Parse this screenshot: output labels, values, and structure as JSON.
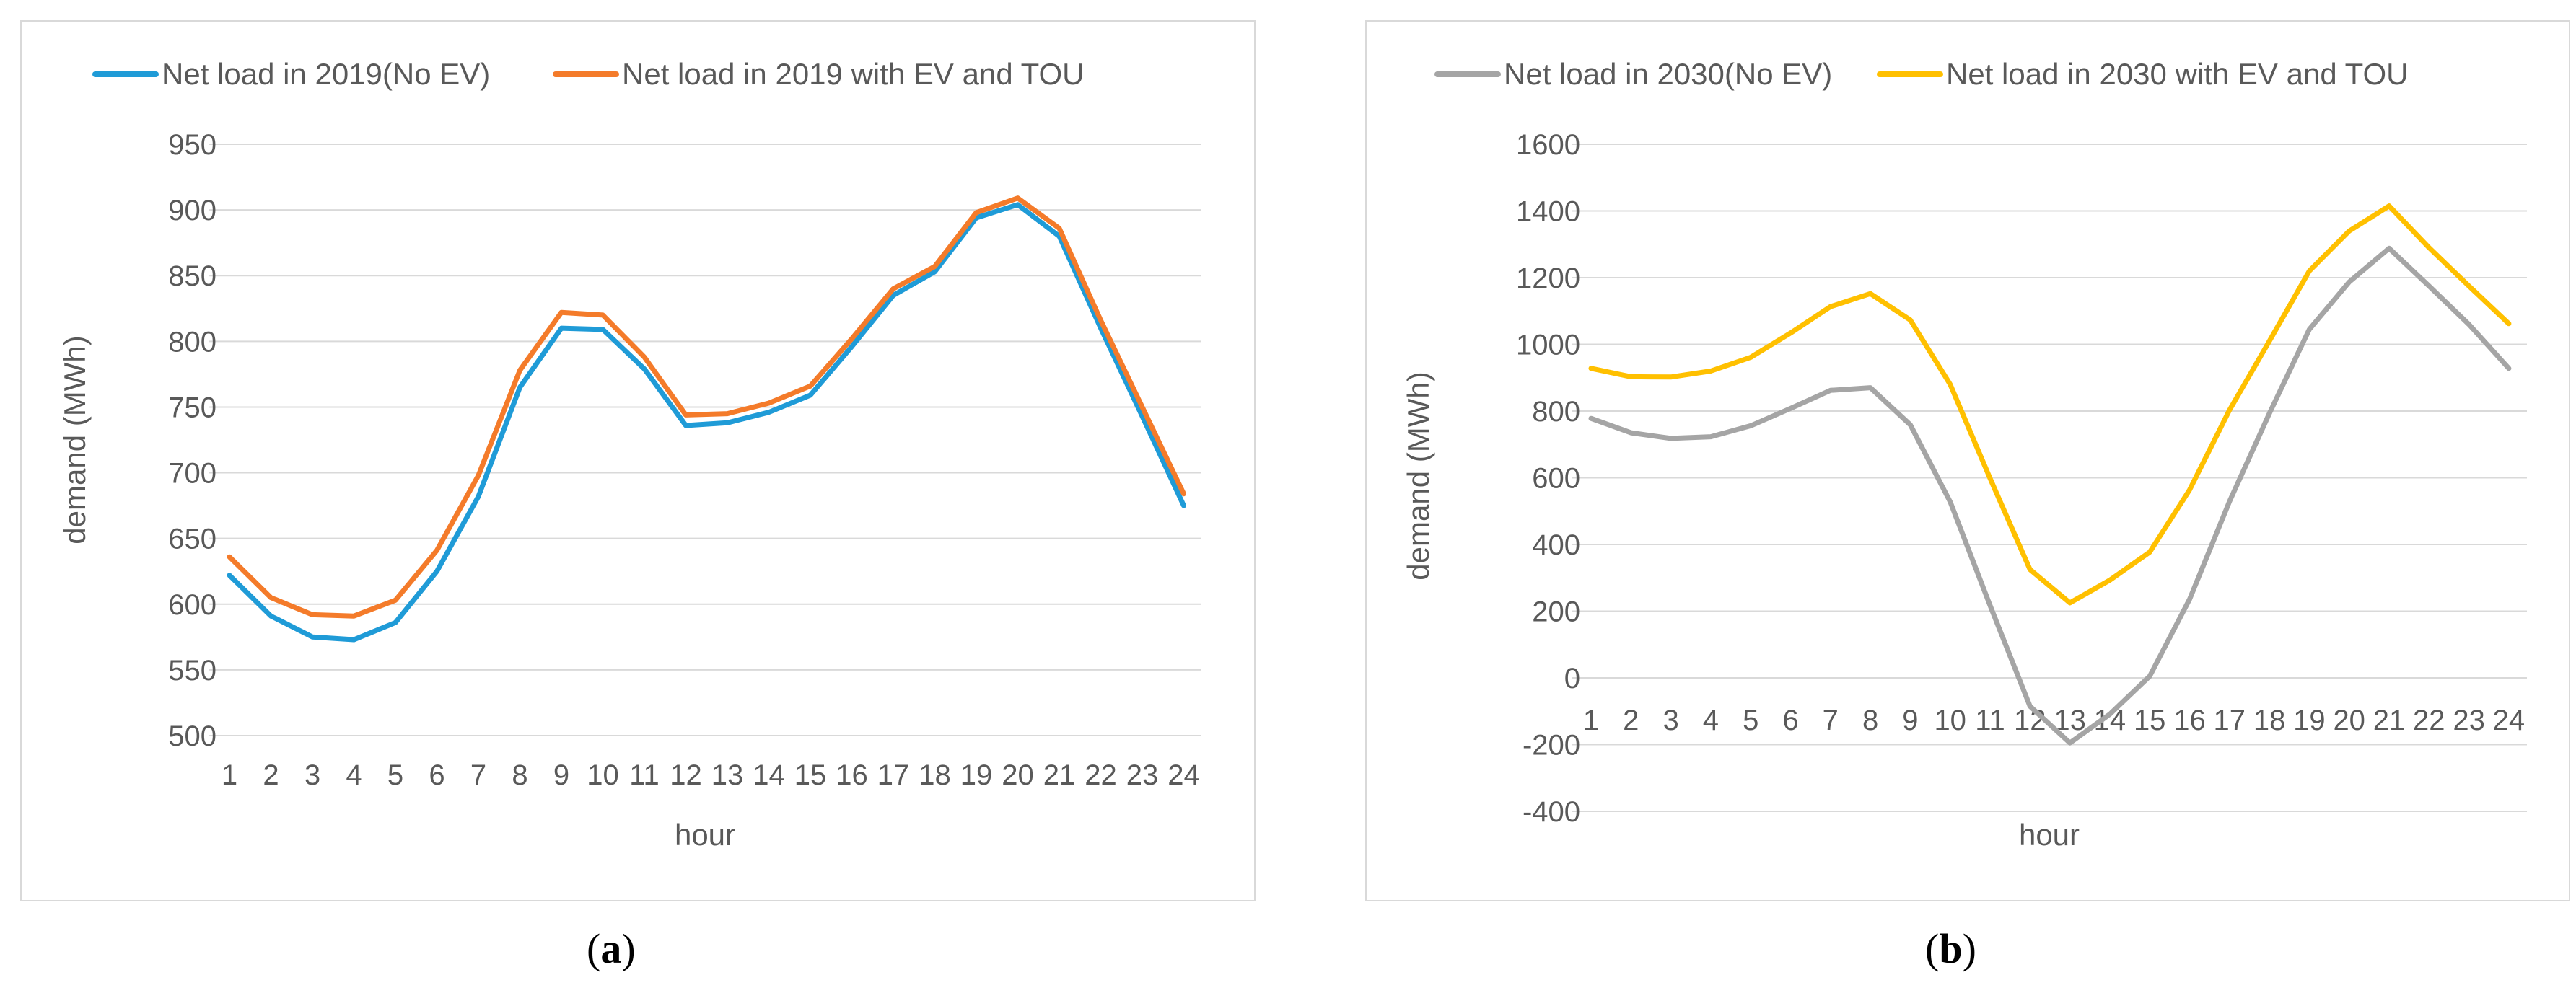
{
  "chart_data": [
    {
      "type": "line",
      "panel_label": "a",
      "title": "",
      "xlabel": "hour",
      "ylabel": "demand (MWh)",
      "ylim": [
        500,
        950
      ],
      "yticks": [
        500,
        550,
        600,
        650,
        700,
        750,
        800,
        850,
        900,
        950
      ],
      "grid": true,
      "legend_position": "top",
      "categories": [
        "1",
        "2",
        "3",
        "4",
        "5",
        "6",
        "7",
        "8",
        "9",
        "10",
        "11",
        "12",
        "13",
        "14",
        "15",
        "16",
        "17",
        "18",
        "19",
        "20",
        "21",
        "22",
        "23",
        "24"
      ],
      "series": [
        {
          "name": "Net load in 2019(No EV)",
          "color": "#1f9bd7",
          "values": [
            622,
            591,
            575,
            573,
            586,
            625,
            682,
            765,
            810,
            809,
            779,
            736,
            738,
            746,
            759,
            796,
            835,
            853,
            894,
            904,
            880,
            810,
            743,
            675
          ]
        },
        {
          "name": "Net load in 2019 with EV and TOU",
          "color": "#f47b2a",
          "values": [
            636,
            605,
            592,
            591,
            603,
            641,
            698,
            778,
            822,
            820,
            788,
            744,
            745,
            753,
            766,
            802,
            840,
            857,
            898,
            909,
            886,
            816,
            750,
            684
          ]
        }
      ]
    },
    {
      "type": "line",
      "panel_label": "b",
      "title": "",
      "xlabel": "hour",
      "ylabel": "demand (MWh)",
      "ylim": [
        -400,
        1600
      ],
      "yticks": [
        -400,
        -200,
        0,
        200,
        400,
        600,
        800,
        1000,
        1200,
        1400,
        1600
      ],
      "grid": true,
      "legend_position": "top",
      "categories": [
        "1",
        "2",
        "3",
        "4",
        "5",
        "6",
        "7",
        "8",
        "9",
        "10",
        "11",
        "12",
        "13",
        "14",
        "15",
        "16",
        "17",
        "18",
        "19",
        "20",
        "21",
        "22",
        "23",
        "24"
      ],
      "series": [
        {
          "name": "Net load in 2030(No EV)",
          "color": "#a5a5a5",
          "values": [
            778,
            735,
            718,
            723,
            756,
            808,
            862,
            870,
            759,
            528,
            217,
            -85,
            -195,
            -109,
            5,
            236,
            529,
            793,
            1045,
            1187,
            1288,
            1175,
            1060,
            928
          ]
        },
        {
          "name": "Net load in 2030 with EV and TOU",
          "color": "#ffc000",
          "values": [
            928,
            903,
            902,
            920,
            961,
            1034,
            1113,
            1152,
            1073,
            880,
            598,
            325,
            225,
            293,
            377,
            564,
            803,
            1010,
            1220,
            1340,
            1415,
            1290,
            1175,
            1062
          ]
        }
      ]
    }
  ],
  "captions": {
    "a": {
      "open": "(",
      "letter": "a",
      "close": ")"
    },
    "b": {
      "open": "(",
      "letter": "b",
      "close": ")"
    }
  }
}
